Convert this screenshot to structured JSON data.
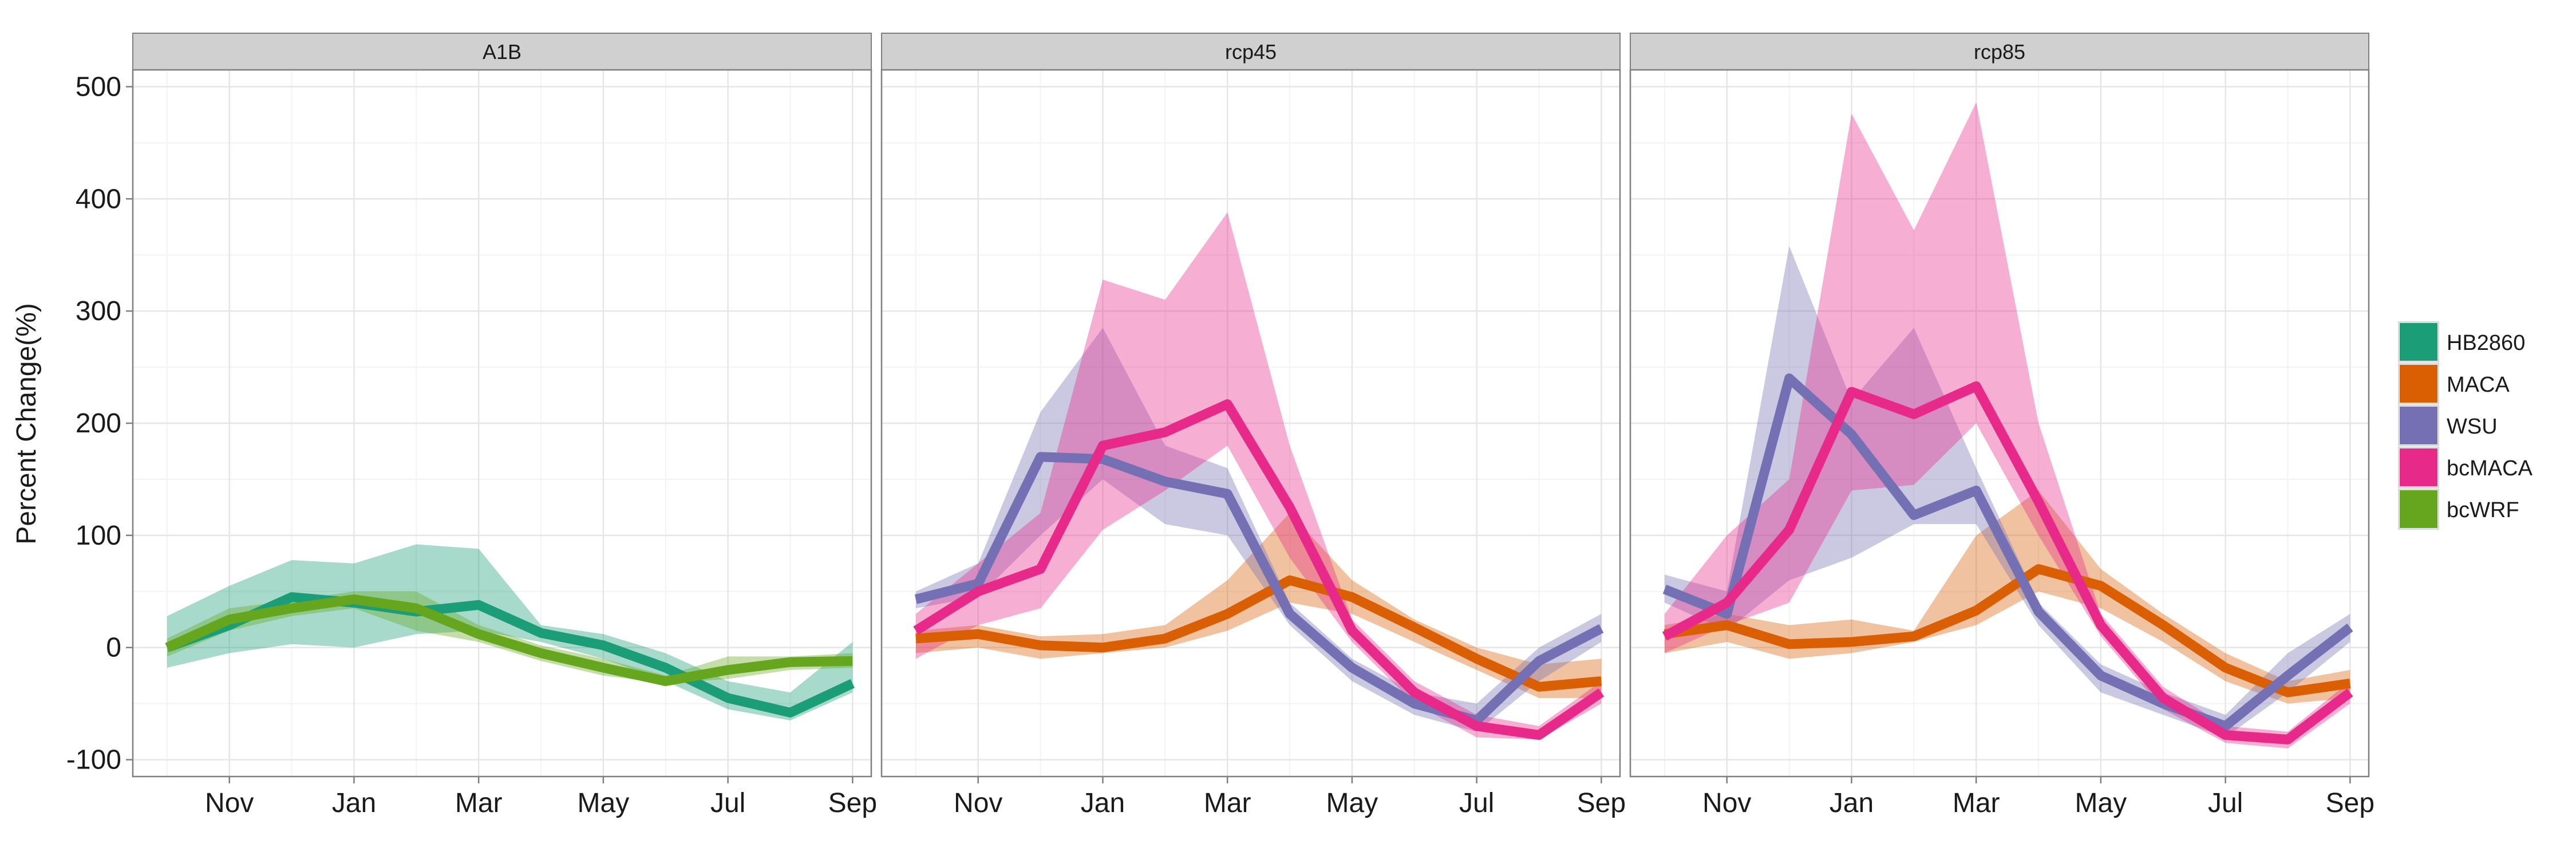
{
  "chart_data": {
    "type": "line",
    "ylabel": "Percent Change(%)",
    "xlabel": "",
    "ylim": [
      -115,
      515
    ],
    "xlim": [
      9.45,
      21.3
    ],
    "y_ticks": [
      -100,
      0,
      100,
      200,
      300,
      400,
      500
    ],
    "x_ticks": [
      {
        "value": 11,
        "label": "Nov"
      },
      {
        "value": 13,
        "label": "Jan"
      },
      {
        "value": 15,
        "label": "Mar"
      },
      {
        "value": 17,
        "label": "May"
      },
      {
        "value": 19,
        "label": "Jul"
      },
      {
        "value": 21,
        "label": "Sep"
      }
    ],
    "grid": true,
    "legend_position": "right",
    "legend": [
      {
        "name": "HB2860",
        "color": "#1b9e77"
      },
      {
        "name": "MACA",
        "color": "#d95f02"
      },
      {
        "name": "WSU",
        "color": "#7570b3"
      },
      {
        "name": "bcMACA",
        "color": "#e7298a"
      },
      {
        "name": "bcWRF",
        "color": "#66a61e"
      }
    ],
    "x": [
      10,
      11,
      12,
      13,
      14,
      15,
      16,
      17,
      18,
      19,
      20,
      21
    ],
    "panels": [
      {
        "title": "A1B",
        "series": [
          {
            "name": "HB2860",
            "color": "#1b9e77",
            "values": [
              0,
              20,
              45,
              40,
              32,
              38,
              13,
              2,
              -18,
              -45,
              -58,
              -32
            ],
            "lower": [
              -18,
              -5,
              3,
              0,
              12,
              15,
              5,
              -10,
              -30,
              -55,
              -65,
              -40
            ],
            "upper": [
              28,
              55,
              78,
              75,
              92,
              88,
              20,
              12,
              -5,
              -30,
              -40,
              5
            ]
          },
          {
            "name": "bcWRF",
            "color": "#66a61e",
            "values": [
              0,
              25,
              35,
              43,
              35,
              12,
              -5,
              -18,
              -30,
              -20,
              -13,
              -12
            ],
            "lower": [
              -8,
              15,
              28,
              35,
              15,
              5,
              -12,
              -25,
              -32,
              -28,
              -20,
              -18
            ],
            "upper": [
              8,
              35,
              42,
              50,
              50,
              20,
              2,
              -10,
              -25,
              -8,
              -8,
              -5
            ]
          }
        ]
      },
      {
        "title": "rcp45",
        "series": [
          {
            "name": "MACA",
            "color": "#d95f02",
            "values": [
              8,
              12,
              2,
              0,
              8,
              30,
              60,
              45,
              18,
              -10,
              -35,
              -30
            ],
            "lower": [
              -5,
              0,
              -10,
              -5,
              0,
              15,
              40,
              30,
              5,
              -20,
              -45,
              -45
            ],
            "upper": [
              15,
              20,
              10,
              12,
              20,
              60,
              120,
              60,
              25,
              0,
              -15,
              -10
            ]
          },
          {
            "name": "WSU",
            "color": "#7570b3",
            "values": [
              43,
              57,
              170,
              168,
              148,
              137,
              30,
              -18,
              -50,
              -65,
              -12,
              17
            ],
            "lower": [
              35,
              45,
              100,
              150,
              110,
              100,
              20,
              -30,
              -60,
              -75,
              -30,
              5
            ],
            "upper": [
              50,
              75,
              210,
              285,
              180,
              160,
              40,
              -10,
              -40,
              -50,
              0,
              30
            ]
          },
          {
            "name": "bcMACA",
            "color": "#e7298a",
            "values": [
              15,
              50,
              70,
              180,
              192,
              217,
              125,
              15,
              -40,
              -70,
              -78,
              -40
            ],
            "lower": [
              -10,
              20,
              35,
              105,
              140,
              180,
              80,
              5,
              -50,
              -80,
              -82,
              -50
            ],
            "upper": [
              30,
              75,
              120,
              328,
              310,
              388,
              180,
              25,
              -30,
              -60,
              -70,
              -30
            ]
          }
        ]
      },
      {
        "title": "rcp85",
        "series": [
          {
            "name": "MACA",
            "color": "#d95f02",
            "values": [
              12,
              20,
              3,
              5,
              10,
              33,
              70,
              55,
              20,
              -18,
              -40,
              -32
            ],
            "lower": [
              -5,
              5,
              -10,
              -5,
              5,
              20,
              50,
              35,
              5,
              -30,
              -50,
              -45
            ],
            "upper": [
              20,
              30,
              20,
              25,
              15,
              100,
              140,
              70,
              30,
              -5,
              -30,
              -20
            ]
          },
          {
            "name": "WSU",
            "color": "#7570b3",
            "values": [
              52,
              30,
              240,
              190,
              118,
              140,
              32,
              -25,
              -50,
              -70,
              -25,
              18
            ],
            "lower": [
              40,
              15,
              60,
              80,
              110,
              110,
              20,
              -40,
              -60,
              -80,
              -40,
              5
            ],
            "upper": [
              65,
              50,
              358,
              220,
              285,
              160,
              40,
              -15,
              -40,
              -60,
              -5,
              30
            ]
          },
          {
            "name": "bcMACA",
            "color": "#e7298a",
            "values": [
              10,
              40,
              105,
              228,
              208,
              233,
              130,
              20,
              -45,
              -78,
              -82,
              -40
            ],
            "lower": [
              -5,
              20,
              40,
              140,
              145,
              200,
              100,
              10,
              -55,
              -85,
              -90,
              -50
            ],
            "upper": [
              30,
              100,
              150,
              476,
              372,
              486,
              200,
              30,
              -35,
              -70,
              -75,
              -30
            ]
          }
        ]
      }
    ]
  }
}
